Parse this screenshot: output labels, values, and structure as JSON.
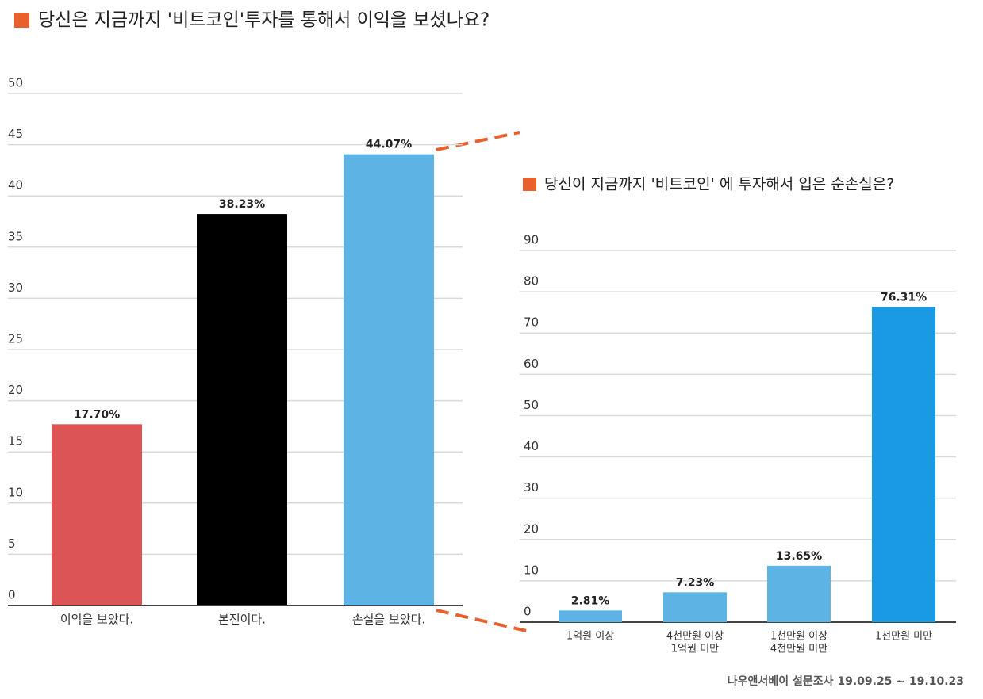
{
  "chart_data": [
    {
      "type": "bar",
      "title": "당신은 지금까지 '비트코인'투자를 통해서 이익을 보셨나요?",
      "categories": [
        [
          "이익을 보았다."
        ],
        [
          "본전이다."
        ],
        [
          "손실을 보았다."
        ]
      ],
      "values": [
        17.7,
        38.23,
        44.07
      ],
      "value_labels": [
        "17.70%",
        "38.23%",
        "44.07%"
      ],
      "colors": [
        "#dc5454",
        "#000000",
        "#5db4e4"
      ],
      "ylim": [
        0,
        50
      ],
      "yticks": [
        0,
        5,
        10,
        15,
        20,
        25,
        30,
        35,
        40,
        45,
        50
      ],
      "grid": true
    },
    {
      "type": "bar",
      "title": "당신이 지금까지 '비트코인' 에 투자해서 입은 순손실은?",
      "categories": [
        [
          "1억원 이상"
        ],
        [
          "4천만원 이상",
          "1억원 미만"
        ],
        [
          "1천만원 이상",
          "4천만원 미만"
        ],
        [
          "1천만원 미만"
        ]
      ],
      "values": [
        2.81,
        7.23,
        13.65,
        76.31
      ],
      "value_labels": [
        "2.81%",
        "7.23%",
        "13.65%",
        "76.31%"
      ],
      "colors": [
        "#5db4e4",
        "#5db4e4",
        "#5db4e4",
        "#1a9ae2"
      ],
      "ylim": [
        0,
        90
      ],
      "yticks": [
        0,
        10,
        20,
        30,
        40,
        50,
        60,
        70,
        80,
        90
      ],
      "grid": true
    }
  ],
  "source": "나우앤서베이 설문조사 19.09.25 ~ 19.10.23"
}
